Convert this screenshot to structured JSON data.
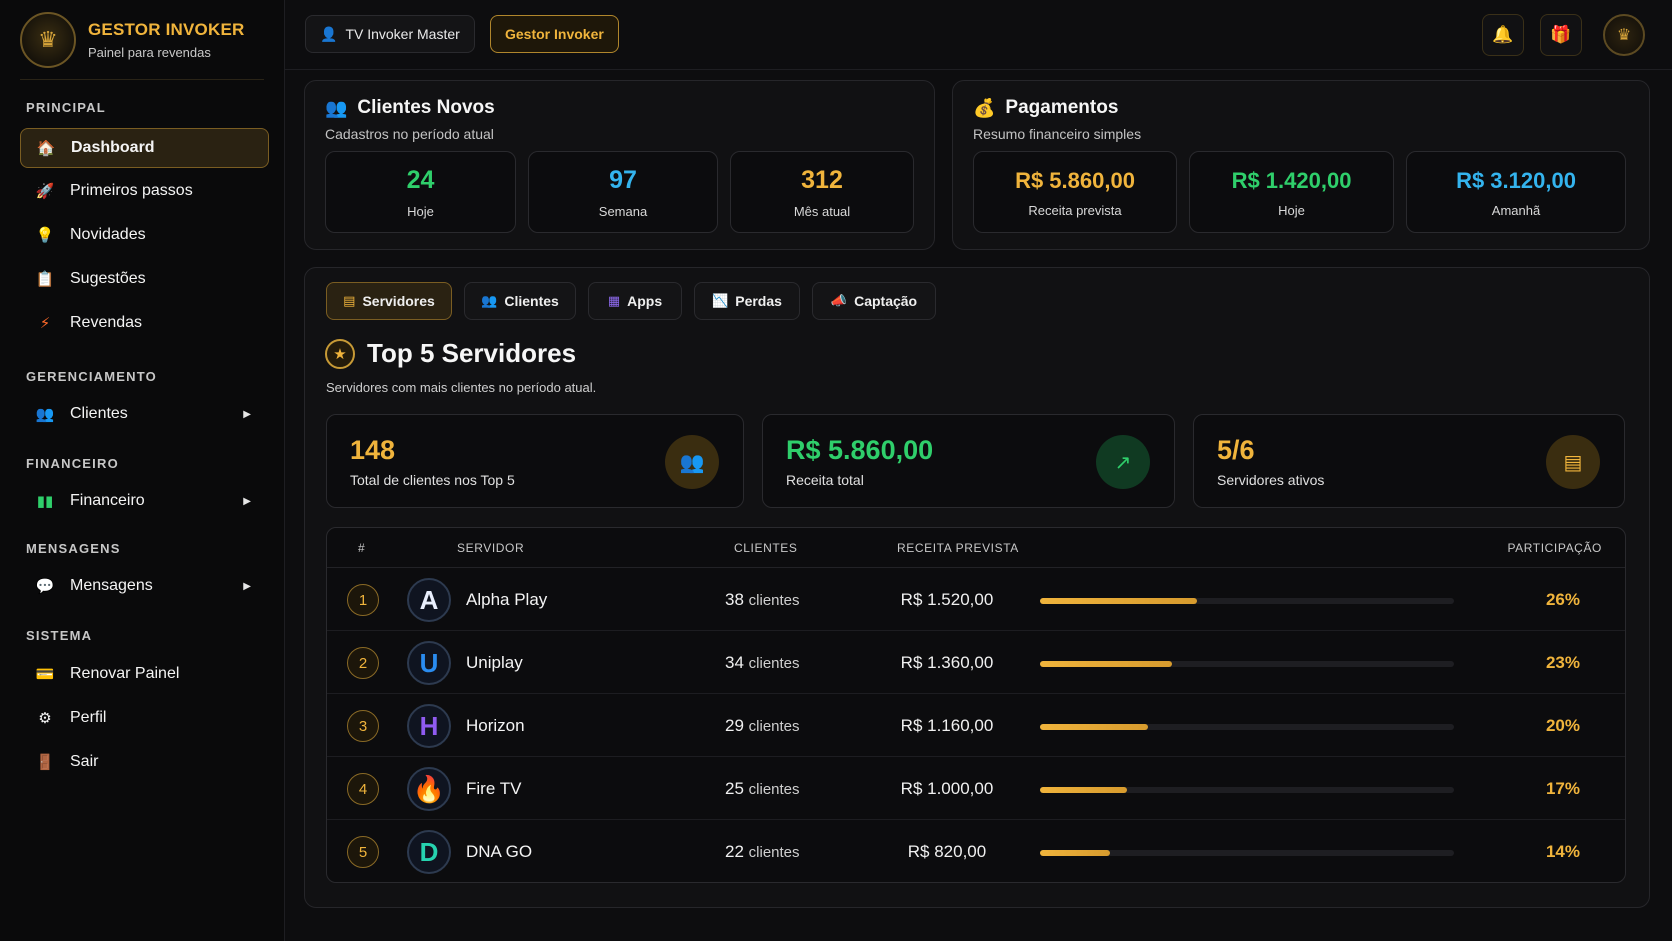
{
  "brand": {
    "title": "GESTOR INVOKER",
    "subtitle": "Painel para revendas"
  },
  "sidebar": {
    "sections": {
      "principal": "PRINCIPAL",
      "gerenciamento": "GERENCIAMENTO",
      "financeiro": "FINANCEIRO",
      "mensagens": "MENSAGENS",
      "sistema": "SISTEMA"
    },
    "items": {
      "dashboard": "Dashboard",
      "primeiros_passos": "Primeiros passos",
      "novidades": "Novidades",
      "sugestoes": "Sugestões",
      "revendas": "Revendas",
      "clientes": "Clientes",
      "financeiro": "Financeiro",
      "mensagens": "Mensagens",
      "renovar": "Renovar Painel",
      "perfil": "Perfil",
      "sair": "Sair"
    }
  },
  "topbar": {
    "pill1": "TV Invoker Master",
    "pill2": "Gestor Invoker"
  },
  "clientes_novos": {
    "title": "Clientes Novos",
    "subtitle": "Cadastros no período atual",
    "stats": [
      {
        "value": "24",
        "label": "Hoje",
        "color": "#2fcf6b"
      },
      {
        "value": "97",
        "label": "Semana",
        "color": "#34b4ee"
      },
      {
        "value": "312",
        "label": "Mês atual",
        "color": "#f0b43c"
      }
    ]
  },
  "pagamentos": {
    "title": "Pagamentos",
    "subtitle": "Resumo financeiro simples",
    "stats": [
      {
        "value": "R$ 5.860,00",
        "label": "Receita prevista",
        "color": "#f0b43c"
      },
      {
        "value": "R$ 1.420,00",
        "label": "Hoje",
        "color": "#2fcf6b"
      },
      {
        "value": "R$ 3.120,00",
        "label": "Amanhã",
        "color": "#34b4ee"
      }
    ]
  },
  "tabs": [
    "Servidores",
    "Clientes",
    "Apps",
    "Perdas",
    "Captação"
  ],
  "top5": {
    "title": "Top 5 Servidores",
    "description": "Servidores com mais clientes no período atual.",
    "kpis": [
      {
        "value": "148",
        "label": "Total de clientes nos Top 5",
        "color": "#f0b43c"
      },
      {
        "value": "R$ 5.860,00",
        "label": "Receita total",
        "color": "#2fcf6b"
      },
      {
        "value": "5/6",
        "label": "Servidores ativos",
        "color": "#f0b43c"
      }
    ],
    "headers": {
      "rank": "#",
      "server": "SERVIDOR",
      "clients": "CLIENTES",
      "revenue": "RECEITA PREVISTA",
      "share": "PARTICIPAÇÃO"
    },
    "client_unit": "clientes",
    "rows": [
      {
        "rank": "1",
        "letter": "A",
        "letter_color": "#e8eefc",
        "name": "Alpha Play",
        "clients": "38",
        "revenue": "R$ 1.520,00",
        "share_fraction": 0.38,
        "share": "26%"
      },
      {
        "rank": "2",
        "letter": "U",
        "letter_color": "#2a8cf0",
        "name": "Uniplay",
        "clients": "34",
        "revenue": "R$ 1.360,00",
        "share_fraction": 0.32,
        "share": "23%"
      },
      {
        "rank": "3",
        "letter": "H",
        "letter_color": "#8f5bf0",
        "name": "Horizon",
        "clients": "29",
        "revenue": "R$ 1.160,00",
        "share_fraction": 0.26,
        "share": "20%"
      },
      {
        "rank": "4",
        "letter": "🔥",
        "letter_color": "#ff5a2a",
        "name": "Fire TV",
        "clients": "25",
        "revenue": "R$ 1.000,00",
        "share_fraction": 0.21,
        "share": "17%"
      },
      {
        "rank": "5",
        "letter": "D",
        "letter_color": "#26d3b0",
        "name": "DNA GO",
        "clients": "22",
        "revenue": "R$ 820,00",
        "share_fraction": 0.17,
        "share": "14%"
      }
    ]
  }
}
